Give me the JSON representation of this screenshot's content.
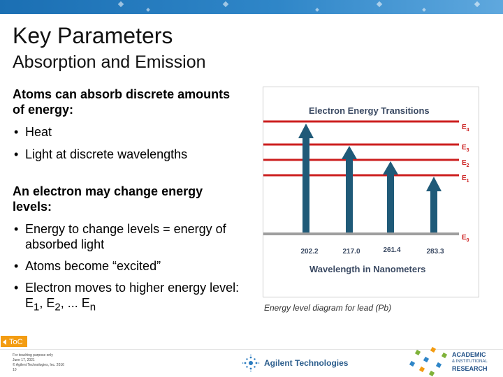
{
  "slide": {
    "title": "Key Parameters",
    "subtitle": "Absorption and Emission"
  },
  "content": {
    "section1_heading": "Atoms can absorb discrete amounts of energy:",
    "section1_bullets": [
      "Heat",
      "Light at discrete wavelengths"
    ],
    "section2_heading": "An electron may change energy levels:",
    "section2_bullets": [
      "Energy to change levels = energy of absorbed light",
      "Atoms become “excited”"
    ],
    "section2_last_bullet": {
      "prefix": "Electron moves to higher energy level: E",
      "sub1": "1",
      "mid1": ", E",
      "sub2": "2",
      "mid2": ", ... E",
      "subn": "n"
    }
  },
  "figure": {
    "title": "Electron Energy Transitions",
    "levels": [
      {
        "base": "E",
        "sub": "4"
      },
      {
        "base": "E",
        "sub": "3"
      },
      {
        "base": "E",
        "sub": "2"
      },
      {
        "base": "E",
        "sub": "1"
      },
      {
        "base": "E",
        "sub": "0"
      }
    ],
    "wavelengths": [
      "202.2",
      "217.0",
      "261.4",
      "283.3"
    ],
    "xlabel": "Wavelength in Nanometers",
    "caption": "Energy level diagram for lead (Pb)",
    "colors": {
      "level": "#cc1f1f",
      "ground": "#9e9e9e",
      "arrow": "#1f5a78",
      "title": "#3b4a63"
    }
  },
  "footer": {
    "toc_label": "ToC",
    "lines": [
      "For teaching purpose only",
      "June 17, 2021",
      "© Agilent Technologies, Inc. 2016",
      "10"
    ],
    "agilent_name": "Agilent Technologies",
    "academic_lines": [
      "ACADEMIC",
      "& INSTITUTIONAL",
      "RESEARCH"
    ]
  }
}
